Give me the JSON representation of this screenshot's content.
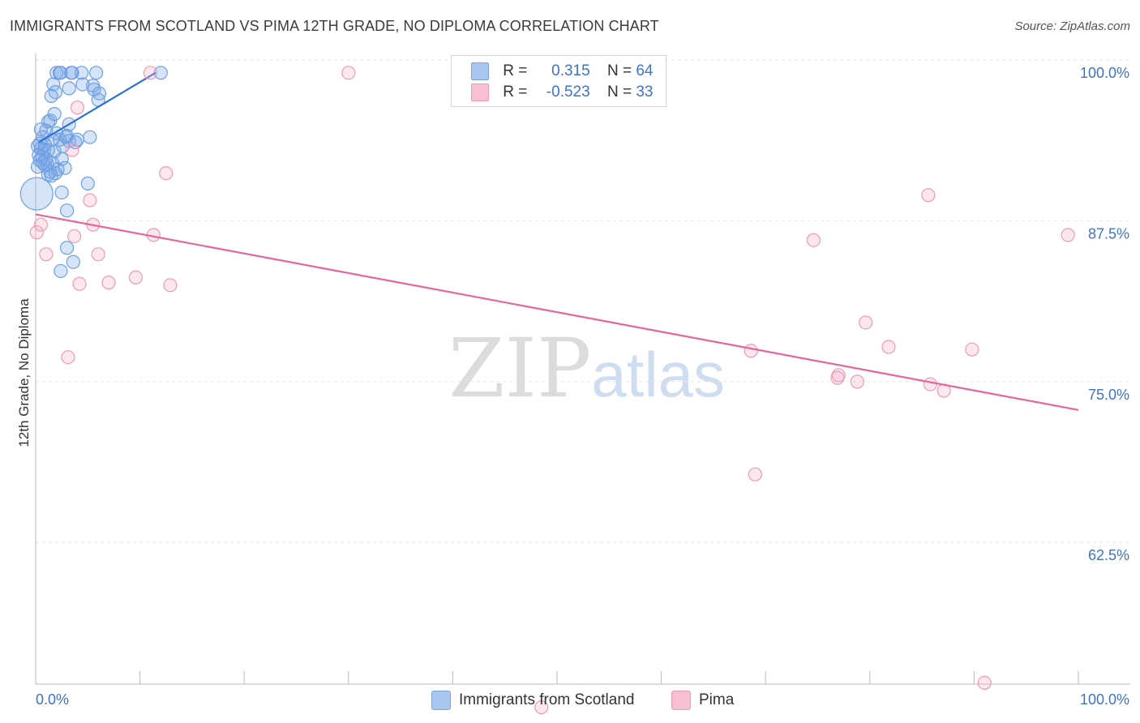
{
  "header": {
    "title": "IMMIGRANTS FROM SCOTLAND VS PIMA 12TH GRADE, NO DIPLOMA CORRELATION CHART",
    "source": "Source: ZipAtlas.com"
  },
  "watermark": {
    "zip": "ZIP",
    "atlas": "atlas"
  },
  "legend": {
    "rows": [
      {
        "r_label": "R =",
        "r_value": "0.315",
        "n_label": "N =",
        "n_value": "64",
        "color": "#a8c6f0",
        "border": "#7aa3de"
      },
      {
        "r_label": "R =",
        "r_value": "-0.523",
        "n_label": "N =",
        "n_value": "33",
        "color": "#f7bfd2",
        "border": "#ee9ab7"
      }
    ]
  },
  "chart_data": {
    "type": "scatter",
    "title": "IMMIGRANTS FROM SCOTLAND VS PIMA 12TH GRADE, NO DIPLOMA CORRELATION CHART",
    "xlabel": "",
    "ylabel": "12th Grade, No Diploma",
    "xlim": [
      0,
      100
    ],
    "ylim": [
      52.5,
      101.5
    ],
    "x_tick_labels": [
      "0.0%",
      "100.0%"
    ],
    "y_ticks": [
      100.0,
      87.5,
      75.0,
      62.5
    ],
    "y_tick_labels": [
      "100.0%",
      "87.5%",
      "75.0%",
      "62.5%"
    ],
    "grid": true,
    "series": [
      {
        "name": "Immigrants from Scotland",
        "color": "#6f9fe0",
        "fill": "rgba(120,165,232,0.30)",
        "line_color": "#2f72d4",
        "trend": {
          "x1": 0.3,
          "y1": 94.6,
          "x2": 11.5,
          "y2": 100.0
        },
        "points": [
          [
            2.0,
            100.0
          ],
          [
            2.3,
            100.0
          ],
          [
            3.5,
            100.0
          ],
          [
            4.4,
            100.0
          ],
          [
            5.8,
            100.0
          ],
          [
            12.0,
            100.0
          ],
          [
            1.7,
            99.1
          ],
          [
            4.5,
            99.1
          ],
          [
            3.2,
            98.8
          ],
          [
            5.6,
            98.7
          ],
          [
            1.9,
            98.5
          ],
          [
            1.5,
            98.2
          ],
          [
            6.0,
            97.9
          ],
          [
            1.4,
            96.3
          ],
          [
            1.2,
            96.2
          ],
          [
            3.2,
            96.0
          ],
          [
            1.0,
            95.5
          ],
          [
            2.0,
            95.3
          ],
          [
            0.7,
            95.0
          ],
          [
            3.0,
            95.1
          ],
          [
            1.6,
            94.8
          ],
          [
            2.3,
            94.8
          ],
          [
            3.2,
            94.7
          ],
          [
            5.2,
            95.0
          ],
          [
            0.4,
            94.5
          ],
          [
            0.9,
            94.4
          ],
          [
            0.2,
            94.3
          ],
          [
            0.5,
            94.1
          ],
          [
            0.8,
            94.0
          ],
          [
            1.2,
            94.0
          ],
          [
            1.8,
            93.9
          ],
          [
            0.3,
            93.6
          ],
          [
            0.6,
            93.5
          ],
          [
            1.0,
            93.3
          ],
          [
            0.4,
            93.2
          ],
          [
            2.5,
            93.3
          ],
          [
            1.6,
            93.0
          ],
          [
            0.9,
            92.8
          ],
          [
            0.2,
            92.7
          ],
          [
            2.1,
            92.5
          ],
          [
            1.4,
            92.3
          ],
          [
            1.9,
            92.2
          ],
          [
            2.8,
            92.6
          ],
          [
            1.2,
            92.1
          ],
          [
            1.5,
            92.0
          ],
          [
            5.0,
            91.4
          ],
          [
            2.5,
            90.7
          ],
          [
            0.1,
            90.6
          ],
          [
            3.0,
            89.3
          ],
          [
            3.0,
            86.4
          ],
          [
            3.6,
            85.3
          ],
          [
            2.4,
            84.6
          ],
          [
            2.4,
            100.0
          ],
          [
            3.4,
            100.0
          ],
          [
            5.5,
            99.0
          ],
          [
            6.1,
            98.4
          ],
          [
            0.7,
            93.0
          ],
          [
            1.1,
            92.9
          ],
          [
            2.6,
            94.3
          ],
          [
            3.8,
            94.6
          ],
          [
            0.5,
            95.6
          ],
          [
            1.8,
            96.8
          ],
          [
            2.9,
            95.0
          ],
          [
            4.0,
            94.8
          ]
        ],
        "sizes": {
          "0.1,90.6": 40
        }
      },
      {
        "name": "Pima",
        "color": "#ee9ab7",
        "fill": "rgba(244,170,196,0.28)",
        "line_color": "#e4669a",
        "trend": {
          "x1": 0.0,
          "y1": 89.0,
          "x2": 100.0,
          "y2": 73.8
        },
        "points": [
          [
            11.0,
            100.0
          ],
          [
            30.0,
            100.0
          ],
          [
            4.0,
            97.3
          ],
          [
            12.5,
            92.2
          ],
          [
            0.5,
            88.2
          ],
          [
            5.2,
            90.1
          ],
          [
            5.5,
            88.2
          ],
          [
            0.1,
            87.6
          ],
          [
            3.7,
            87.3
          ],
          [
            11.3,
            87.4
          ],
          [
            99.0,
            87.4
          ],
          [
            85.6,
            90.5
          ],
          [
            74.6,
            87.0
          ],
          [
            1.0,
            85.9
          ],
          [
            6.0,
            85.9
          ],
          [
            4.2,
            83.6
          ],
          [
            7.0,
            83.7
          ],
          [
            9.6,
            84.1
          ],
          [
            12.9,
            83.5
          ],
          [
            3.1,
            77.9
          ],
          [
            79.6,
            80.6
          ],
          [
            89.8,
            78.5
          ],
          [
            81.8,
            78.7
          ],
          [
            68.6,
            78.4
          ],
          [
            76.9,
            76.3
          ],
          [
            77.0,
            76.5
          ],
          [
            78.8,
            76.0
          ],
          [
            85.8,
            75.8
          ],
          [
            87.1,
            75.3
          ],
          [
            69.0,
            68.8
          ],
          [
            91.0,
            52.6
          ],
          [
            48.5,
            50.7
          ],
          [
            3.5,
            94.0
          ]
        ]
      }
    ]
  },
  "bottom_legend": {
    "items": [
      {
        "label": "Immigrants from Scotland",
        "color": "#a8c6f0",
        "border": "#7aa3de"
      },
      {
        "label": "Pima",
        "color": "#f7bfd2",
        "border": "#ee9ab7"
      }
    ]
  }
}
